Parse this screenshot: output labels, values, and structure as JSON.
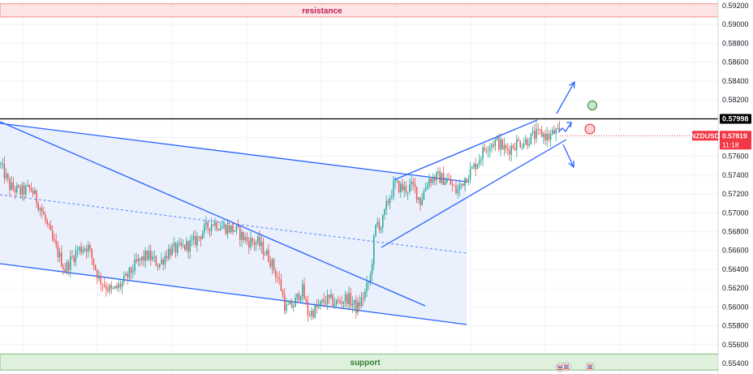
{
  "chart_data": {
    "type": "candlestick",
    "symbol": "NZDUSD",
    "last_price": "0.57819",
    "countdown": "11:18",
    "level_price": "0.57998",
    "y_range": [
      0.5545,
      0.5922
    ],
    "y_ticks": [
      "0.59200",
      "0.59000",
      "0.58800",
      "0.58600",
      "0.58400",
      "0.58200",
      "0.58000",
      "0.57800",
      "0.57600",
      "0.57400",
      "0.57200",
      "0.57000",
      "0.56800",
      "0.56600",
      "0.56400",
      "0.56200",
      "0.56000",
      "0.55800",
      "0.55600",
      "0.55400"
    ],
    "zones": {
      "resistance": {
        "label": "resistance",
        "top": 0.5922,
        "bottom": 0.5908
      },
      "support": {
        "label": "support",
        "top": 0.555,
        "bottom": 0.5533
      }
    },
    "grid": true,
    "colors": {
      "up": "#26a69a",
      "down": "#ef5350",
      "drawing": "#2962ff",
      "channel_fill": "#e3ecfb",
      "resistance_fill": "#fde4e4",
      "resistance_border": "#f28b8b",
      "resistance_text": "#c2185b",
      "support_fill": "#dff1dc",
      "support_border": "#7fbf7b",
      "support_text": "#2e7d32",
      "level_line": "#000000",
      "price_tag": "#f23645"
    }
  },
  "watermark_icons": [
    "flag-icon",
    "flag-icon"
  ]
}
